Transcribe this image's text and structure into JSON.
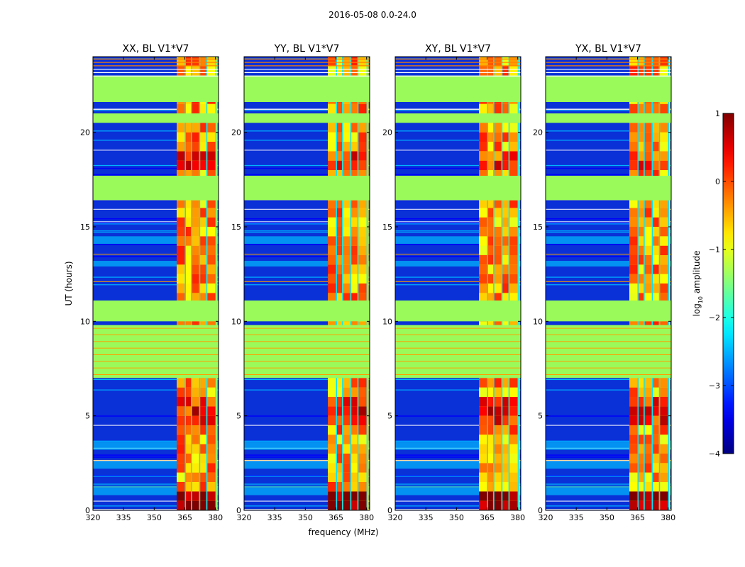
{
  "figure_title": "2016-05-08 0.0-24.0",
  "chart_data": {
    "type": "heatmap",
    "suptitle": "2016-05-08 0.0-24.0",
    "panels": [
      {
        "title": "XX, BL V1*V7"
      },
      {
        "title": "YY, BL V1*V7"
      },
      {
        "title": "XY, BL V1*V7"
      },
      {
        "title": "YX, BL V1*V7"
      }
    ],
    "xlabel": "frequency (MHz)",
    "ylabel": "UT (hours)",
    "xlim": [
      320,
      381.5
    ],
    "ylim": [
      0,
      24
    ],
    "xticks": [
      320,
      335,
      350,
      365,
      380
    ],
    "yticks": [
      0,
      5,
      10,
      15,
      20
    ],
    "colorbar": {
      "label": "log10 amplitude",
      "label_main": "log",
      "label_sub": "10",
      "label_rest": " amplitude",
      "range": [
        -4,
        1
      ],
      "ticks": [
        -4,
        -3,
        -2,
        -1,
        0,
        1
      ],
      "tick_labels": [
        "−4",
        "−3",
        "−2",
        "−1",
        "0",
        "1"
      ],
      "colormap": "jet"
    },
    "flagged_time_ranges_hours": [
      [
        21.6,
        23.0
      ],
      [
        20.5,
        21.0
      ],
      [
        16.4,
        17.7
      ],
      [
        10.0,
        11.1
      ],
      [
        7.0,
        9.8
      ]
    ],
    "rfi_band_mhz": [
      361,
      381
    ],
    "rfi_channels_mhz": [
      [
        361,
        365
      ],
      [
        365.5,
        368
      ],
      [
        368.5,
        372
      ],
      [
        372.5,
        375.5
      ],
      [
        376,
        380
      ]
    ],
    "flag_color": "#9afa5a"
  }
}
